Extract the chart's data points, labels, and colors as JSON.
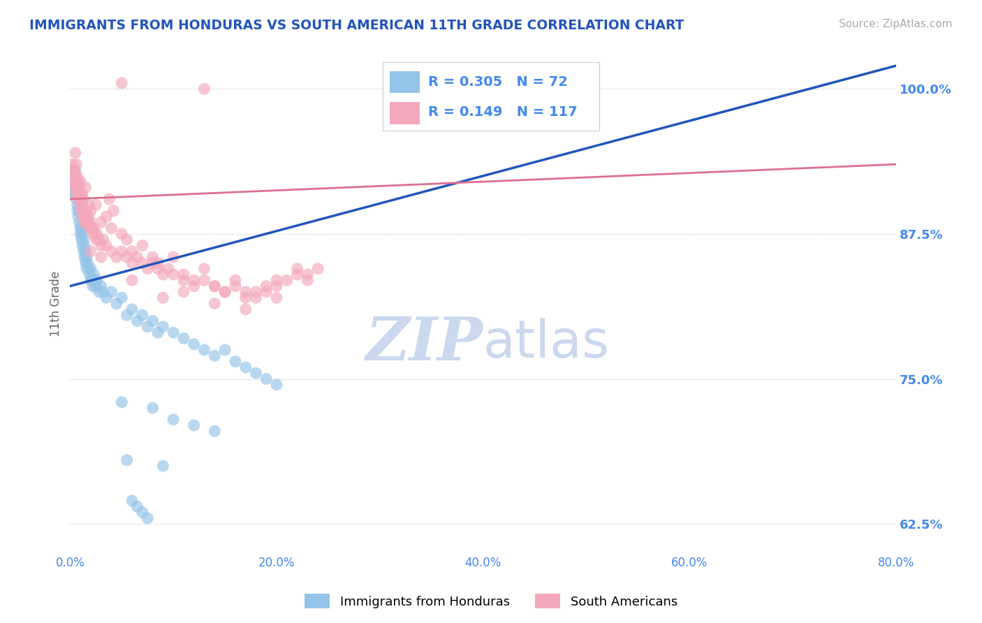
{
  "title": "IMMIGRANTS FROM HONDURAS VS SOUTH AMERICAN 11TH GRADE CORRELATION CHART",
  "source": "Source: ZipAtlas.com",
  "ylabel": "11th Grade",
  "y_ticks": [
    62.5,
    75.0,
    87.5,
    100.0
  ],
  "x_min": 0.0,
  "x_max": 25.0,
  "x_axis_max": 80.0,
  "y_min": 60.0,
  "y_max": 103.0,
  "R_blue": 0.305,
  "N_blue": 72,
  "R_pink": 0.149,
  "N_pink": 117,
  "blue_color": "#94c4e8",
  "pink_color": "#f4a8bc",
  "blue_line_color": "#2255bb",
  "pink_line_color": "#dd7090",
  "watermark_color": "#ccd8ee",
  "legend_label_blue": "Immigrants from Honduras",
  "legend_label_pink": "South Americans",
  "title_color": "#2255bb",
  "axis_color": "#4488ee",
  "blue_points": [
    [
      0.3,
      91.5
    ],
    [
      0.4,
      91.0
    ],
    [
      0.5,
      93.0
    ],
    [
      0.5,
      91.0
    ],
    [
      0.6,
      90.5
    ],
    [
      0.7,
      90.0
    ],
    [
      0.7,
      89.5
    ],
    [
      0.8,
      89.0
    ],
    [
      0.9,
      89.5
    ],
    [
      0.9,
      88.5
    ],
    [
      1.0,
      88.0
    ],
    [
      1.0,
      87.5
    ],
    [
      1.1,
      88.0
    ],
    [
      1.1,
      87.0
    ],
    [
      1.2,
      87.5
    ],
    [
      1.2,
      86.5
    ],
    [
      1.3,
      87.0
    ],
    [
      1.3,
      86.0
    ],
    [
      1.4,
      86.5
    ],
    [
      1.4,
      85.5
    ],
    [
      1.5,
      86.0
    ],
    [
      1.5,
      85.0
    ],
    [
      1.6,
      85.5
    ],
    [
      1.6,
      84.5
    ],
    [
      1.7,
      85.0
    ],
    [
      1.8,
      84.5
    ],
    [
      1.9,
      84.0
    ],
    [
      2.0,
      84.5
    ],
    [
      2.0,
      83.5
    ],
    [
      2.1,
      83.5
    ],
    [
      2.2,
      83.0
    ],
    [
      2.3,
      84.0
    ],
    [
      2.4,
      83.5
    ],
    [
      2.5,
      83.0
    ],
    [
      2.6,
      83.5
    ],
    [
      2.8,
      82.5
    ],
    [
      3.0,
      83.0
    ],
    [
      3.2,
      82.5
    ],
    [
      3.5,
      82.0
    ],
    [
      4.0,
      82.5
    ],
    [
      4.5,
      81.5
    ],
    [
      5.0,
      82.0
    ],
    [
      5.5,
      80.5
    ],
    [
      6.0,
      81.0
    ],
    [
      6.5,
      80.0
    ],
    [
      7.0,
      80.5
    ],
    [
      7.5,
      79.5
    ],
    [
      8.0,
      80.0
    ],
    [
      8.5,
      79.0
    ],
    [
      9.0,
      79.5
    ],
    [
      10.0,
      79.0
    ],
    [
      11.0,
      78.5
    ],
    [
      12.0,
      78.0
    ],
    [
      13.0,
      77.5
    ],
    [
      14.0,
      77.0
    ],
    [
      15.0,
      77.5
    ],
    [
      16.0,
      76.5
    ],
    [
      17.0,
      76.0
    ],
    [
      18.0,
      75.5
    ],
    [
      19.0,
      75.0
    ],
    [
      20.0,
      74.5
    ],
    [
      5.0,
      73.0
    ],
    [
      8.0,
      72.5
    ],
    [
      10.0,
      71.5
    ],
    [
      12.0,
      71.0
    ],
    [
      14.0,
      70.5
    ],
    [
      5.5,
      68.0
    ],
    [
      9.0,
      67.5
    ],
    [
      6.0,
      64.5
    ],
    [
      6.5,
      64.0
    ],
    [
      7.0,
      63.5
    ],
    [
      7.5,
      63.0
    ]
  ],
  "pink_points": [
    [
      0.2,
      93.5
    ],
    [
      0.3,
      93.0
    ],
    [
      0.3,
      92.5
    ],
    [
      0.4,
      93.0
    ],
    [
      0.4,
      92.0
    ],
    [
      0.5,
      92.5
    ],
    [
      0.5,
      91.5
    ],
    [
      0.6,
      92.0
    ],
    [
      0.6,
      91.0
    ],
    [
      0.7,
      92.5
    ],
    [
      0.7,
      91.5
    ],
    [
      0.8,
      91.0
    ],
    [
      0.8,
      90.5
    ],
    [
      0.9,
      91.5
    ],
    [
      0.9,
      90.5
    ],
    [
      1.0,
      91.0
    ],
    [
      1.0,
      90.0
    ],
    [
      1.1,
      90.5
    ],
    [
      1.1,
      89.5
    ],
    [
      1.2,
      90.0
    ],
    [
      1.2,
      89.0
    ],
    [
      1.3,
      90.5
    ],
    [
      1.3,
      89.5
    ],
    [
      1.4,
      89.0
    ],
    [
      1.4,
      88.5
    ],
    [
      1.5,
      89.5
    ],
    [
      1.5,
      88.5
    ],
    [
      1.6,
      89.0
    ],
    [
      1.7,
      88.5
    ],
    [
      1.8,
      89.0
    ],
    [
      1.9,
      88.0
    ],
    [
      2.0,
      88.5
    ],
    [
      2.1,
      88.0
    ],
    [
      2.2,
      87.5
    ],
    [
      2.3,
      88.0
    ],
    [
      2.4,
      87.5
    ],
    [
      2.5,
      87.0
    ],
    [
      2.6,
      87.5
    ],
    [
      2.8,
      87.0
    ],
    [
      3.0,
      86.5
    ],
    [
      3.2,
      87.0
    ],
    [
      3.5,
      86.5
    ],
    [
      4.0,
      86.0
    ],
    [
      4.5,
      85.5
    ],
    [
      5.0,
      86.0
    ],
    [
      5.5,
      85.5
    ],
    [
      6.0,
      85.0
    ],
    [
      6.5,
      85.5
    ],
    [
      7.0,
      85.0
    ],
    [
      7.5,
      84.5
    ],
    [
      8.0,
      85.0
    ],
    [
      8.5,
      84.5
    ],
    [
      9.0,
      84.0
    ],
    [
      9.5,
      84.5
    ],
    [
      10.0,
      84.0
    ],
    [
      11.0,
      83.5
    ],
    [
      12.0,
      83.0
    ],
    [
      13.0,
      83.5
    ],
    [
      14.0,
      83.0
    ],
    [
      15.0,
      82.5
    ],
    [
      16.0,
      83.0
    ],
    [
      17.0,
      82.5
    ],
    [
      18.0,
      82.0
    ],
    [
      19.0,
      82.5
    ],
    [
      20.0,
      82.0
    ],
    [
      3.8,
      90.5
    ],
    [
      4.2,
      89.5
    ],
    [
      2.0,
      86.0
    ],
    [
      3.0,
      85.5
    ],
    [
      6.0,
      83.5
    ],
    [
      9.0,
      82.0
    ],
    [
      11.0,
      82.5
    ],
    [
      14.0,
      81.5
    ],
    [
      17.0,
      81.0
    ],
    [
      20.0,
      83.0
    ],
    [
      22.0,
      84.0
    ],
    [
      0.5,
      94.5
    ],
    [
      1.0,
      92.0
    ],
    [
      1.5,
      91.5
    ],
    [
      2.5,
      90.0
    ],
    [
      3.5,
      89.0
    ],
    [
      5.0,
      87.5
    ],
    [
      7.0,
      86.5
    ],
    [
      10.0,
      85.5
    ],
    [
      13.0,
      84.5
    ],
    [
      16.0,
      83.5
    ],
    [
      19.0,
      83.0
    ],
    [
      22.0,
      84.5
    ],
    [
      4.0,
      88.0
    ],
    [
      6.0,
      86.0
    ],
    [
      8.0,
      85.5
    ],
    [
      11.0,
      84.0
    ],
    [
      14.0,
      83.0
    ],
    [
      17.0,
      82.0
    ],
    [
      20.0,
      83.5
    ],
    [
      23.0,
      84.0
    ],
    [
      2.0,
      89.5
    ],
    [
      3.0,
      88.5
    ],
    [
      5.5,
      87.0
    ],
    [
      8.5,
      85.0
    ],
    [
      12.0,
      83.5
    ],
    [
      15.0,
      82.5
    ],
    [
      18.0,
      82.5
    ],
    [
      21.0,
      83.5
    ],
    [
      0.6,
      93.5
    ],
    [
      0.8,
      92.0
    ],
    [
      1.2,
      91.0
    ],
    [
      1.8,
      90.0
    ],
    [
      23.0,
      83.5
    ],
    [
      24.0,
      84.5
    ],
    [
      5.0,
      100.5
    ],
    [
      13.0,
      100.0
    ]
  ]
}
